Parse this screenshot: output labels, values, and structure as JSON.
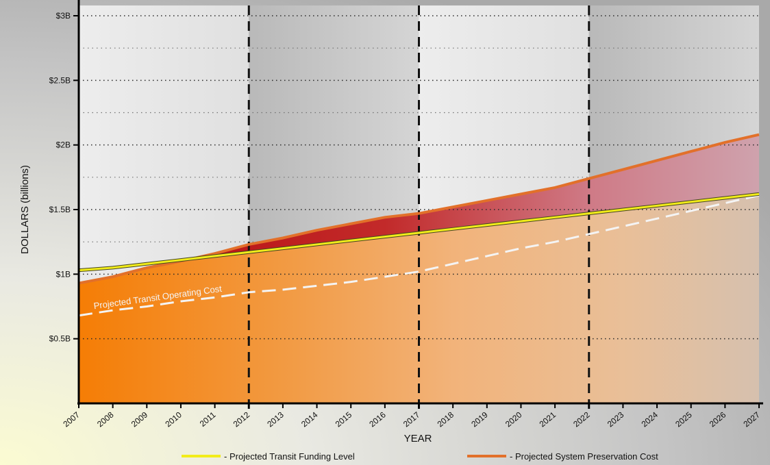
{
  "chart_data": {
    "type": "area",
    "title": "",
    "xlabel": "YEAR",
    "ylabel": "DOLLARS (billions)",
    "x": [
      2007,
      2008,
      2009,
      2010,
      2011,
      2012,
      2013,
      2014,
      2015,
      2016,
      2017,
      2018,
      2019,
      2020,
      2021,
      2022,
      2023,
      2024,
      2025,
      2026,
      2027
    ],
    "x_tick_labels": [
      "2007",
      "2008",
      "2009",
      "2010",
      "2011",
      "2012",
      "2013",
      "2014",
      "2015",
      "2016",
      "2017",
      "2018",
      "2019",
      "2020",
      "2021",
      "2022",
      "2023",
      "2024",
      "2025",
      "2026",
      "2027"
    ],
    "ylim": [
      0,
      3
    ],
    "y_ticks": [
      0.5,
      1,
      1.5,
      2,
      2.5,
      3
    ],
    "y_tick_labels": [
      "$0.5B",
      "$1B",
      "$1.5B",
      "$2B",
      "$2.5B",
      "$3B"
    ],
    "y_minor_grid": [
      0.25,
      0.75,
      1.25,
      1.75,
      2.25,
      2.75
    ],
    "grid": true,
    "period_dividers": [
      2012,
      2017,
      2022
    ],
    "series": [
      {
        "name": "- Projected Transit Funding Level",
        "color": "#f2ec1a",
        "values": [
          1.03,
          1.05,
          1.08,
          1.11,
          1.14,
          1.17,
          1.2,
          1.23,
          1.26,
          1.29,
          1.32,
          1.35,
          1.38,
          1.41,
          1.44,
          1.47,
          1.5,
          1.53,
          1.56,
          1.59,
          1.62
        ]
      },
      {
        "name": "- Projected System Preservation Cost",
        "color": "#e2702a",
        "values": [
          0.93,
          0.98,
          1.05,
          1.1,
          1.16,
          1.23,
          1.28,
          1.34,
          1.39,
          1.44,
          1.47,
          1.52,
          1.57,
          1.62,
          1.67,
          1.74,
          1.81,
          1.88,
          1.95,
          2.02,
          2.08
        ]
      },
      {
        "name": "Projected Transit Operating Cost",
        "color": "#f2f2f2",
        "values": [
          0.68,
          0.72,
          0.75,
          0.79,
          0.82,
          0.86,
          0.88,
          0.91,
          0.94,
          0.98,
          1.02,
          1.08,
          1.14,
          1.2,
          1.25,
          1.31,
          1.37,
          1.43,
          1.49,
          1.55,
          1.61
        ]
      }
    ],
    "annotation": "Projected Transit Operating Cost",
    "legend": [
      {
        "label": "- Projected Transit Funding Level",
        "color": "#f2ec1a"
      },
      {
        "label": "- Projected System Preservation Cost",
        "color": "#e2702a"
      }
    ],
    "legend_placement": "bottom"
  }
}
